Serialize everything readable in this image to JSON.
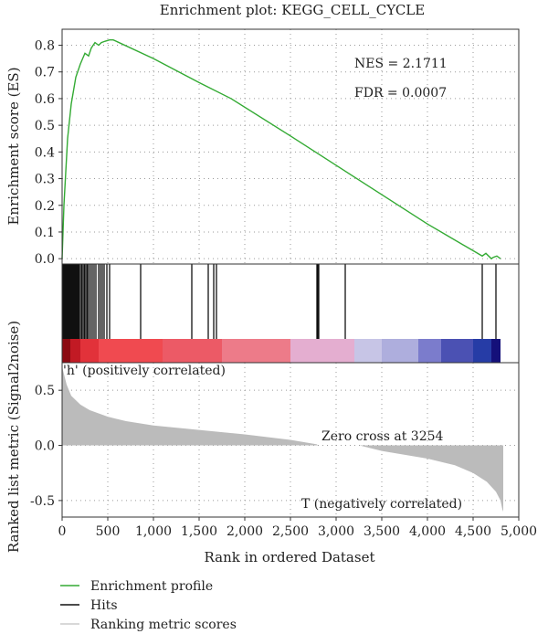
{
  "chart_data": {
    "type": "line",
    "title": "Enrichment plot: KEGG_CELL_CYCLE",
    "xlabel": "Rank in ordered Dataset",
    "x_ticks": [
      0,
      500,
      1000,
      1500,
      2000,
      2500,
      3000,
      3500,
      4000,
      4500,
      5000
    ],
    "x_tick_labels": [
      "0",
      "500",
      "1,000",
      "1,500",
      "2,000",
      "2,500",
      "3,000",
      "3,500",
      "4,000",
      "4,500",
      "5,000"
    ],
    "xlim": [
      0,
      5000
    ],
    "grid": true,
    "panels": {
      "enrichment": {
        "ylabel": "Enrichment score (ES)",
        "ylim": [
          -0.02,
          0.86
        ],
        "y_ticks": [
          0.0,
          0.1,
          0.2,
          0.3,
          0.4,
          0.5,
          0.6,
          0.7,
          0.8
        ],
        "y_tick_labels": [
          "0.0",
          "0.1",
          "0.2",
          "0.3",
          "0.4",
          "0.5",
          "0.6",
          "0.7",
          "0.8"
        ],
        "annotations": [
          "NES = 2.1711",
          "FDR = 0.0007"
        ],
        "series": [
          {
            "name": "Enrichment profile",
            "color": "#33aa33",
            "x": [
              0,
              20,
              60,
              100,
              150,
              200,
              250,
              290,
              320,
              360,
              400,
              430,
              470,
              520,
              560,
              1000,
              1500,
              1850,
              2500,
              3000,
              3500,
              4000,
              4500,
              4600,
              4640,
              4700,
              4720,
              4760,
              4800
            ],
            "y": [
              0.0,
              0.2,
              0.45,
              0.58,
              0.68,
              0.73,
              0.77,
              0.76,
              0.79,
              0.81,
              0.8,
              0.81,
              0.815,
              0.82,
              0.82,
              0.75,
              0.66,
              0.6,
              0.46,
              0.35,
              0.24,
              0.13,
              0.03,
              0.01,
              0.02,
              0.0,
              0.005,
              0.01,
              0.0
            ]
          }
        ]
      },
      "hits": {
        "name": "Hits",
        "color": "#111111",
        "positions": [
          5,
          15,
          25,
          35,
          45,
          55,
          65,
          75,
          85,
          95,
          105,
          115,
          125,
          135,
          145,
          155,
          165,
          175,
          185,
          200,
          215,
          230,
          245,
          260,
          275,
          290,
          310,
          330,
          350,
          370,
          400,
          420,
          440,
          460,
          490,
          520,
          860,
          1420,
          1600,
          1660,
          1690,
          2790,
          2800,
          2810,
          3100,
          4600,
          4750
        ]
      },
      "heatmap": {
        "bands": [
          {
            "from": 0,
            "to": 90,
            "color": "#8b0a12"
          },
          {
            "from": 90,
            "to": 200,
            "color": "#c21a24"
          },
          {
            "from": 200,
            "to": 400,
            "color": "#e2323a"
          },
          {
            "from": 400,
            "to": 1100,
            "color": "#f04a50"
          },
          {
            "from": 1100,
            "to": 1750,
            "color": "#ec5a66"
          },
          {
            "from": 1750,
            "to": 2500,
            "color": "#ed7b89"
          },
          {
            "from": 2500,
            "to": 3200,
            "color": "#e4aed0"
          },
          {
            "from": 3200,
            "to": 3500,
            "color": "#c7c5e6"
          },
          {
            "from": 3500,
            "to": 3900,
            "color": "#aeaedd"
          },
          {
            "from": 3900,
            "to": 4150,
            "color": "#7b7ccc"
          },
          {
            "from": 4150,
            "to": 4500,
            "color": "#4b51b3"
          },
          {
            "from": 4500,
            "to": 4700,
            "color": "#263ca6"
          },
          {
            "from": 4700,
            "to": 4800,
            "color": "#14107a"
          }
        ],
        "positive_label": "'h' (positively correlated)",
        "positive_color": "#e8505a",
        "negative_label": "T (negatively correlated)",
        "negative_color": "#3a5fc8"
      },
      "ranked": {
        "ylabel": "Ranked list metric (Signal2noise)",
        "name": "Ranking metric scores",
        "color": "#bbbbbb",
        "ylim": [
          -0.65,
          0.75
        ],
        "y_ticks": [
          0.5,
          0.0,
          -0.5
        ],
        "y_tick_labels": [
          "0.5",
          "0.0",
          "-0.5"
        ],
        "zero_cross_label": "Zero cross at 3254",
        "x": [
          0,
          10,
          50,
          100,
          200,
          300,
          500,
          700,
          1000,
          1500,
          2000,
          2500,
          2790,
          2800,
          3000,
          3254,
          3500,
          4000,
          4300,
          4500,
          4650,
          4750,
          4800,
          4820,
          4830
        ],
        "y": [
          0.72,
          0.68,
          0.55,
          0.45,
          0.37,
          0.32,
          0.26,
          0.22,
          0.18,
          0.14,
          0.1,
          0.05,
          0.01,
          0.0,
          0.0,
          0.0,
          -0.05,
          -0.12,
          -0.18,
          -0.25,
          -0.33,
          -0.42,
          -0.5,
          -0.58,
          -0.6
        ]
      }
    },
    "legend": {
      "placement": "bottom-left",
      "entries": [
        {
          "label": "Enrichment profile",
          "color": "#33aa33"
        },
        {
          "label": "Hits",
          "color": "#111111"
        },
        {
          "label": "Ranking metric scores",
          "color": "#cccccc"
        }
      ]
    }
  }
}
